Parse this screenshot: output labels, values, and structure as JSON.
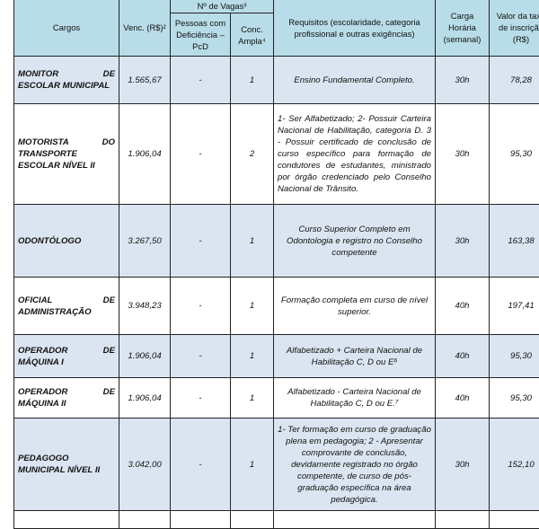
{
  "header": {
    "cargos": "Cargos",
    "venc": "Venc. (R$)²",
    "vagas": "Nº de Vagas³",
    "pcd": "Pessoas com Deficiência – PcD",
    "ampla": "Conc. Ampla⁴",
    "requisitos": "Requisitos (escolaridade, categoria profissional e outras exigências)",
    "carga": "Carga Horária (semanal)",
    "taxa": "Valor da taxa de inscrição (R$)"
  },
  "colors": {
    "header_bg": "#b8dde8",
    "row_alt_bg": "#dbe5f1"
  },
  "rows": [
    {
      "cargo": "MONITOR DE ESCOLAR MUNICIPAL",
      "venc": "1.565,67",
      "pcd": "-",
      "ampla": "1",
      "requisitos": "Ensino Fundamental Completo.",
      "carga": "30h",
      "taxa": "78,28"
    },
    {
      "cargo": "MOTORISTA DO TRANSPORTE ESCOLAR NÍVEL II",
      "venc": "1.906,04",
      "pcd": "-",
      "ampla": "2",
      "requisitos": "1- Ser Alfabetizado; 2- Possuir Carteira Nacional de Habilitação, categoria D. 3 - Possuir certificado de conclusão de curso específico para formação de condutores de estudantes, ministrado por órgão credenciado pelo Conselho Nacional de Trânsito.",
      "carga": "30h",
      "taxa": "95,30"
    },
    {
      "cargo": "ODONTÓLOGO",
      "venc": "3.267,50",
      "pcd": "-",
      "ampla": "1",
      "requisitos": "Curso Superior Completo em Odontologia e registro no Conselho competente",
      "carga": "30h",
      "taxa": "163,38"
    },
    {
      "cargo": "OFICIAL DE ADMINISTRAÇÃO",
      "venc": "3.948,23",
      "pcd": "-",
      "ampla": "1",
      "requisitos": "Formação completa em curso de nível superior.",
      "carga": "40h",
      "taxa": "197,41"
    },
    {
      "cargo": "OPERADOR DE MÁQUINA I",
      "venc": "1.906,04",
      "pcd": "-",
      "ampla": "1",
      "requisitos": "Alfabetizado + Carteira Nacional de Habilitação C, D ou E⁶",
      "carga": "40h",
      "taxa": "95,30"
    },
    {
      "cargo": "OPERADOR DE MÁQUINA II",
      "venc": "1.906,04",
      "pcd": "-",
      "ampla": "1",
      "requisitos": "Alfabetizado - Carteira Nacional de Habilitação C, D ou E.⁷",
      "carga": "40h",
      "taxa": "95,30"
    },
    {
      "cargo": "PEDAGOGO MUNICIPAL NÍVEL II",
      "venc": "3.042,00",
      "pcd": "-",
      "ampla": "1",
      "requisitos": "1- Ter formação em curso de graduação plena em pedagogia; 2 - Apresentar comprovante de conclusão, devidamente registrado no órgão competente, de curso de pós-graduação específica na área pedagógica.",
      "carga": "30h",
      "taxa": "152,10"
    }
  ]
}
